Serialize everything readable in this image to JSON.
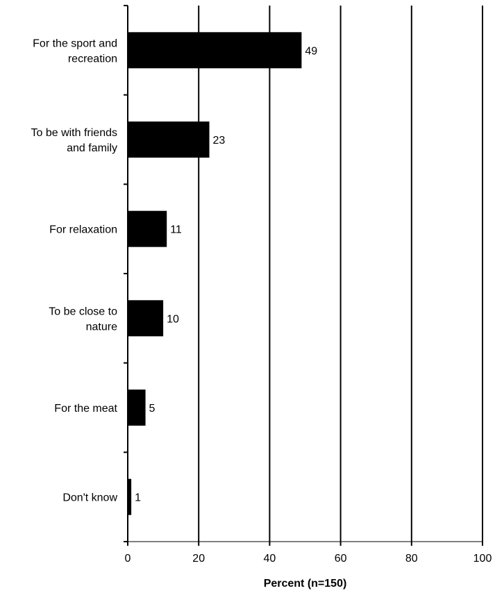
{
  "chart_data": {
    "type": "bar",
    "orientation": "horizontal",
    "categories": [
      [
        "For the sport and",
        "recreation"
      ],
      [
        "To be with friends",
        "and family"
      ],
      [
        "For relaxation"
      ],
      [
        "To be close to",
        "nature"
      ],
      [
        "For the meat"
      ],
      [
        "Don't know"
      ]
    ],
    "values": [
      49,
      23,
      11,
      10,
      5,
      1
    ],
    "data_labels": [
      "49",
      "23",
      "11",
      "10",
      "5",
      "1"
    ],
    "xlabel": "Percent (n=150)",
    "xlim": [
      0,
      100
    ],
    "xticks": [
      0,
      20,
      40,
      60,
      80,
      100
    ],
    "xtick_labels": [
      "0",
      "20",
      "40",
      "60",
      "80",
      "100"
    ],
    "grid": "vertical",
    "legend": "none",
    "bar_color": "#000000"
  }
}
